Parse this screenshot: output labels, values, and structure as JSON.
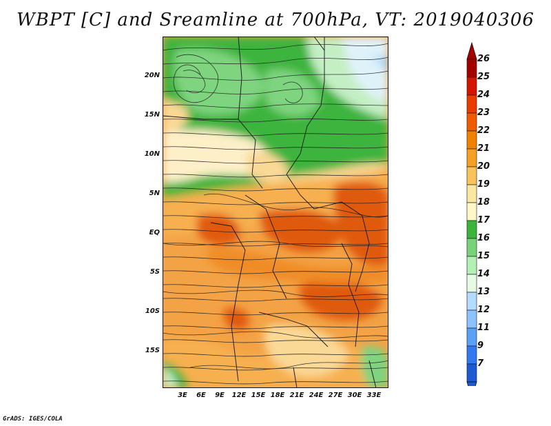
{
  "title": "WBPT [C] and Sreamline at 700hPa, VT: 2019040306",
  "latitude_labels": [
    "20N",
    "15N",
    "10N",
    "5N",
    "EQ",
    "5S",
    "10S",
    "15S"
  ],
  "longitude_labels": [
    "3E",
    "6E",
    "9E",
    "12E",
    "15E",
    "18E",
    "21E",
    "24E",
    "27E",
    "30E",
    "33E"
  ],
  "colorbar": {
    "labels": [
      "26",
      "25",
      "24",
      "23",
      "22",
      "21",
      "20",
      "19",
      "18",
      "17",
      "16",
      "15",
      "14",
      "13",
      "12",
      "11",
      "9",
      "7"
    ],
    "colors": [
      "#a50000",
      "#d21400",
      "#e83c00",
      "#f05a00",
      "#f08200",
      "#f5a023",
      "#f7c35a",
      "#fae7a0",
      "#fff7c8",
      "#3cb43c",
      "#78d278",
      "#b4f0b4",
      "#e6fae6",
      "#b4dcff",
      "#8cc3ff",
      "#5aa0f5",
      "#3278f0",
      "#1e5ad2"
    ]
  },
  "map_colors": {
    "hot": "#e05a10",
    "orange": "#f08c28",
    "light_orange": "#f7b050",
    "tan": "#fad896",
    "cream": "#fdf0c8",
    "green": "#3cb43c",
    "light_green": "#7fd47f",
    "pale_green": "#c4efc4",
    "pale_blue": "#dff2fa",
    "blue": "#9cd0f5"
  },
  "footer": "GrADS: IGES/COLA"
}
